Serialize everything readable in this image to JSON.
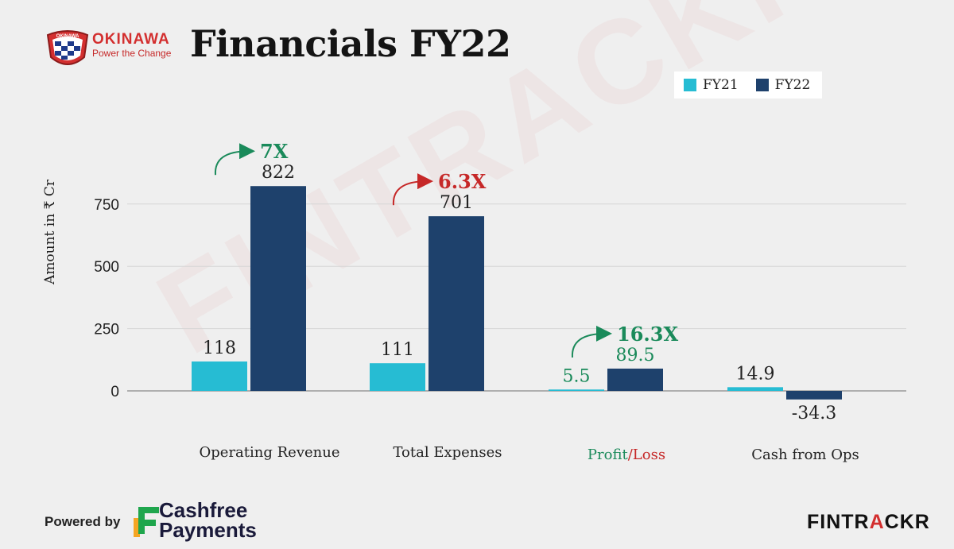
{
  "brand": {
    "name": "OKINAWA",
    "tagline": "Power the Change",
    "colors": {
      "primary": "#d32f2f"
    }
  },
  "header": {
    "title": "Financials FY22"
  },
  "legend": {
    "items": [
      "FY21",
      "FY22"
    ]
  },
  "chart_data": {
    "type": "bar",
    "title": "Financials FY22",
    "ylabel": "Amount in ₹ Cr",
    "xlabel": "",
    "ylim": [
      0,
      850
    ],
    "yticks": [
      0,
      250,
      500,
      750
    ],
    "grid": true,
    "legend_position": "top-right",
    "categories": [
      "Operating Revenue",
      "Total Expenses",
      "Profit/Loss",
      "Cash from Ops"
    ],
    "series": [
      {
        "name": "FY21",
        "color": "#26bcd3",
        "values": [
          118,
          111,
          5.5,
          14.9
        ],
        "labels": [
          "118",
          "111",
          "5.5",
          "14.9"
        ]
      },
      {
        "name": "FY22",
        "color": "#1e416c",
        "values": [
          822,
          701,
          89.5,
          -34.3
        ],
        "labels": [
          "822",
          "701",
          "89.5",
          "-34.3"
        ]
      }
    ],
    "growth_annotations": [
      {
        "category": "Operating Revenue",
        "text": "7X",
        "color": "#1a8a5a"
      },
      {
        "category": "Total Expenses",
        "text": "6.3X",
        "color": "#c62828"
      },
      {
        "category": "Profit/Loss",
        "text": "16.3X",
        "color": "#1a8a5a"
      }
    ],
    "label_colors": {
      "profit": "#1a8a5a",
      "loss": "#c62828",
      "default": "#222222"
    }
  },
  "watermark": "FINTRACKR",
  "footer": {
    "powered_by": "Powered by",
    "partner_line1": "Cashfree",
    "partner_line2": "Payments",
    "brand_part1": "FINTR",
    "brand_part2": "A",
    "brand_part3": "CKR"
  }
}
